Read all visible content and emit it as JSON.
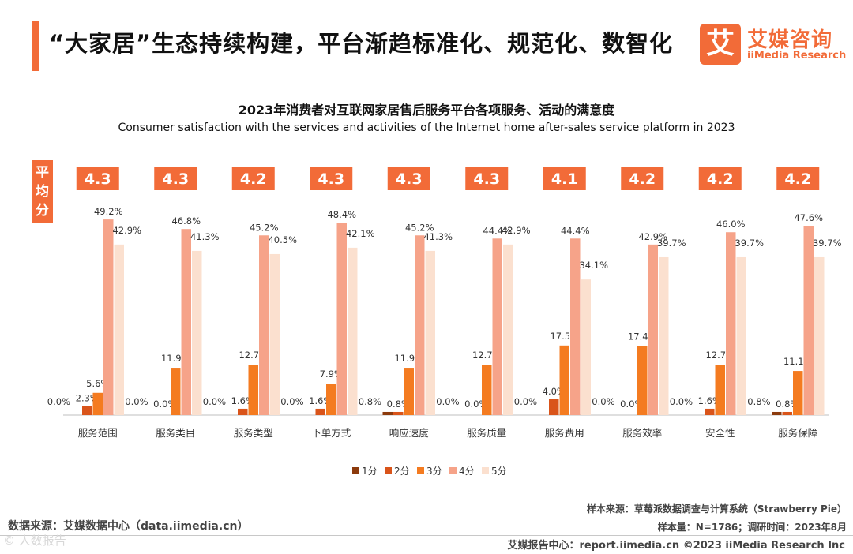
{
  "header": {
    "title": "“大家居”生态持续构建，平台渐趋标准化、规范化、数智化",
    "logo_mark": "艾",
    "logo_cn": "艾媒咨询",
    "logo_en": "iiMedia Research"
  },
  "colors": {
    "accent": "#f26b38",
    "series": [
      "#8c3a0c",
      "#d9541a",
      "#f47b20",
      "#f6a389",
      "#fbe0cf"
    ]
  },
  "chart_data": {
    "type": "bar",
    "title": "2023年消费者对互联网家居售后服务平台各项服务、活动的满意度",
    "subtitle": "Consumer satisfaction with the services and activities of the Internet home after-sales service platform in 2023",
    "avg_label": "平均分",
    "categories": [
      "服务范围",
      "服务类目",
      "服务类型",
      "下单方式",
      "响应速度",
      "服务质量",
      "服务费用",
      "服务效率",
      "安全性",
      "服务保障"
    ],
    "averages": [
      "4.3",
      "4.3",
      "4.2",
      "4.3",
      "4.3",
      "4.3",
      "4.1",
      "4.2",
      "4.2",
      "4.2"
    ],
    "series": [
      {
        "name": "1分",
        "values": [
          0.0,
          0.0,
          0.0,
          0.0,
          0.8,
          0.0,
          0.0,
          0.0,
          0.0,
          0.8
        ]
      },
      {
        "name": "2分",
        "values": [
          2.3,
          0.0,
          1.6,
          1.6,
          0.8,
          0.0,
          4.0,
          0.0,
          1.6,
          0.8
        ]
      },
      {
        "name": "3分",
        "values": [
          5.6,
          11.9,
          12.7,
          7.9,
          11.9,
          12.7,
          17.5,
          17.4,
          12.7,
          11.1
        ]
      },
      {
        "name": "4分",
        "values": [
          49.2,
          46.8,
          45.2,
          48.4,
          45.2,
          44.4,
          44.4,
          42.9,
          46.0,
          47.6
        ]
      },
      {
        "name": "5分",
        "values": [
          42.9,
          41.3,
          40.5,
          42.1,
          41.3,
          42.9,
          34.1,
          39.7,
          39.7,
          39.7
        ]
      }
    ],
    "unit": "%",
    "ylim": [
      0,
      52
    ],
    "legend_position": "bottom-center"
  },
  "source": {
    "left": "数据来源：艾媒数据中心（data.iimedia.cn）",
    "sample_source": "样本来源：草莓派数据调查与计算系统（Strawberry Pie）",
    "sample_size": "样本量：N=1786；调研时间：2023年8月"
  },
  "footer": {
    "text": "艾媒报告中心：report.iimedia.cn   ©2023  iiMedia Research  Inc",
    "watermark": "© 人数报告"
  }
}
